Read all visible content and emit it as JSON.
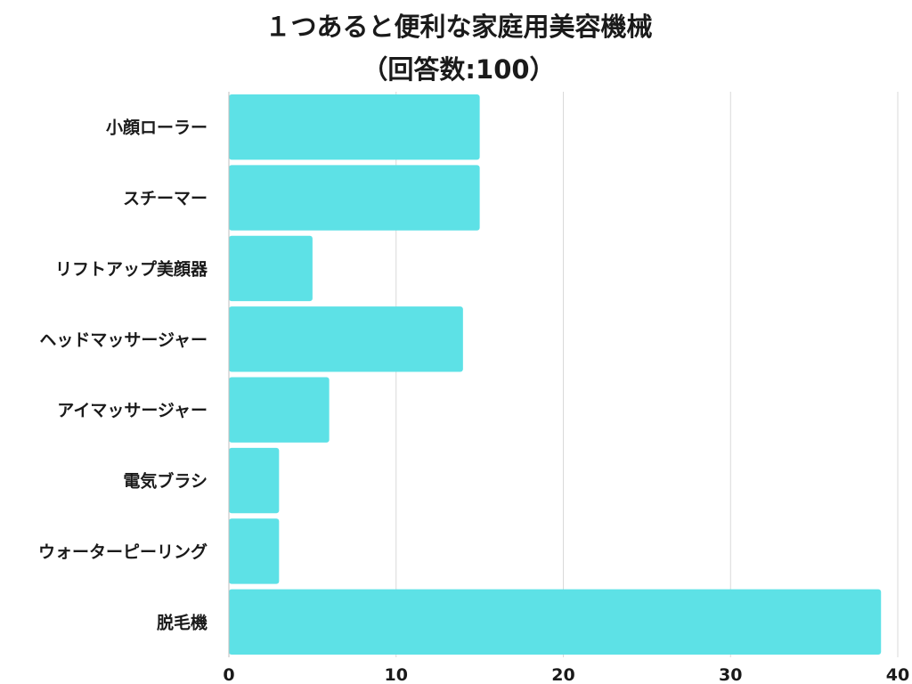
{
  "chart_data": {
    "type": "bar",
    "orientation": "horizontal",
    "title": "１つあると便利な家庭用美容機械",
    "subtitle": "（回答数:100）",
    "categories": [
      "小顔ローラー",
      "スチーマー",
      "リフトアップ美顔器",
      "ヘッドマッサージャー",
      "アイマッサージャー",
      "電気ブラシ",
      "ウォーターピーリング",
      "脱毛機"
    ],
    "values": [
      15,
      15,
      5,
      14,
      6,
      3,
      3,
      39
    ],
    "xlim": [
      0,
      40
    ],
    "xticks": [
      "0",
      "10",
      "20",
      "30",
      "40"
    ],
    "grid": true,
    "bar_color": "#5de1e6",
    "grid_color": "#d9d9d9"
  }
}
